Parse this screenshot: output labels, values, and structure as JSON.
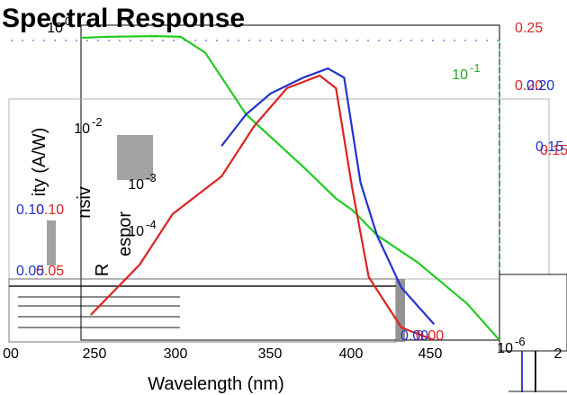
{
  "chart_data": {
    "type": "line",
    "title": "Spectral Response",
    "xlabel": "Wavelength (nm)",
    "ylabel_fragments": [
      "ity (A/W)",
      "nsiv",
      "espor",
      "R"
    ],
    "x_ticks": [
      "00",
      "250",
      "300",
      "350",
      "400",
      "450",
      "2"
    ],
    "y_left_ticks": [
      "10",
      "10",
      "10",
      "10",
      "10"
    ],
    "y_left_exponents": [
      "0",
      "-2",
      "-3",
      "-4",
      "-6"
    ],
    "y_left_inner_tick": "10",
    "y_left_inner_exponent": "-1",
    "y_right_ticks": [
      "0.25",
      "0.20",
      "0.15",
      "0.10",
      "0.05",
      "0.00"
    ],
    "y_right_inner_ticks": [
      "0.20",
      "0.15",
      "0.10",
      "0.05",
      "0.00"
    ],
    "xlim": [
      200,
      500
    ],
    "series": [
      {
        "color": "#22cc22",
        "axis": "log-left",
        "x": [
          200,
          230,
          260,
          290,
          305,
          320,
          345,
          380,
          400,
          410,
          425,
          450,
          480,
          500
        ],
        "y": [
          0.5,
          0.55,
          0.6,
          0.62,
          0.6,
          0.3,
          0.02,
          0.002,
          0.0005,
          0.0003,
          0.0001,
          3e-05,
          5e-06,
          1e-06
        ]
      },
      {
        "color": "#2233cc",
        "axis": "log-left",
        "x": [
          330,
          345,
          360,
          380,
          395,
          405,
          410,
          415,
          425,
          440,
          460
        ],
        "y": [
          0.005,
          0.02,
          0.05,
          0.1,
          0.15,
          0.1,
          0.01,
          0.001,
          0.0001,
          1e-05,
          2e-06
        ]
      },
      {
        "color": "#dd2222",
        "axis": "linear-right",
        "x": [
          250,
          280,
          300,
          330,
          350,
          370,
          390,
          400,
          410,
          420,
          440,
          460
        ],
        "y": [
          0.02,
          0.06,
          0.1,
          0.13,
          0.17,
          0.2,
          0.21,
          0.2,
          0.12,
          0.05,
          0.01,
          0.0
        ]
      }
    ]
  }
}
